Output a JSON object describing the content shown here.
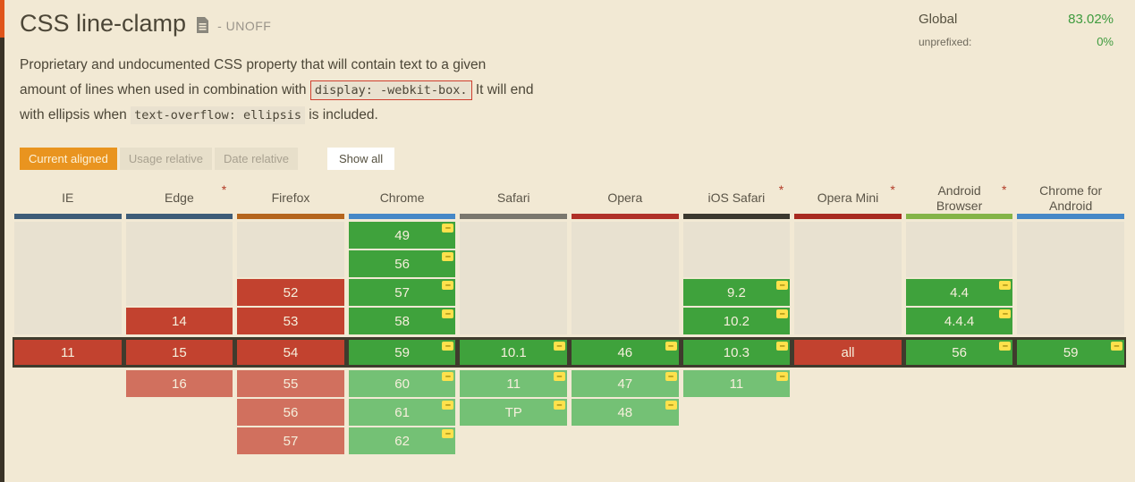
{
  "colors": {
    "accent_stripe_top": "#e0551b",
    "accent_stripe": "#3a3327",
    "active_tab": "#e9941f",
    "usage_value_green": "#3e9b3e"
  },
  "header": {
    "title": "CSS line-clamp",
    "status": "- UNOFF",
    "global_label": "Global",
    "global_value": "83.02%",
    "unprefixed_label": "unprefixed:",
    "unprefixed_value": "0%"
  },
  "description": {
    "part1": "Proprietary and undocumented CSS property that will contain text to a given amount of lines when used in combination with ",
    "code1": "display: -webkit-box.",
    "part2": " It will end with ellipsis when ",
    "code2": "text-overflow: ellipsis",
    "part3": " is included."
  },
  "tabs": [
    {
      "label": "Current aligned",
      "active": true
    },
    {
      "label": "Usage relative",
      "active": false
    },
    {
      "label": "Date relative",
      "active": false
    }
  ],
  "show_all_label": "Show all",
  "table": {
    "badge_glyph": "–",
    "colors": {
      "y": "#3fa23c",
      "n": "#c2422f",
      "y-soon": "#74c175",
      "n-soon": "#d1705e",
      "empty": "#e8e1d0",
      "current_row": "#3f3b2d",
      "badge": "#ffe14c"
    },
    "columns": [
      {
        "name": "IE",
        "star": false,
        "bar": "#3e5c78",
        "past": [
          {
            "empty": 4
          }
        ],
        "current": {
          "v": "11",
          "s": "n"
        },
        "future": []
      },
      {
        "name": "Edge",
        "star": true,
        "bar": "#3e5c78",
        "past": [
          {
            "empty": 3
          },
          {
            "v": "14",
            "s": "n"
          }
        ],
        "current": {
          "v": "15",
          "s": "n"
        },
        "future": [
          {
            "v": "16",
            "s": "n-soon"
          }
        ]
      },
      {
        "name": "Firefox",
        "star": false,
        "bar": "#b5651d",
        "past": [
          {
            "empty": 2
          },
          {
            "v": "52",
            "s": "n"
          },
          {
            "v": "53",
            "s": "n"
          }
        ],
        "current": {
          "v": "54",
          "s": "n"
        },
        "future": [
          {
            "v": "55",
            "s": "n-soon"
          },
          {
            "v": "56",
            "s": "n-soon"
          },
          {
            "v": "57",
            "s": "n-soon"
          }
        ]
      },
      {
        "name": "Chrome",
        "star": false,
        "bar": "#4688c7",
        "past": [
          {
            "v": "49",
            "s": "y",
            "b": true
          },
          {
            "v": "56",
            "s": "y",
            "b": true
          },
          {
            "v": "57",
            "s": "y",
            "b": true
          },
          {
            "v": "58",
            "s": "y",
            "b": true
          }
        ],
        "current": {
          "v": "59",
          "s": "y",
          "b": true
        },
        "future": [
          {
            "v": "60",
            "s": "y-soon",
            "b": true
          },
          {
            "v": "61",
            "s": "y-soon",
            "b": true
          },
          {
            "v": "62",
            "s": "y-soon",
            "b": true
          }
        ]
      },
      {
        "name": "Safari",
        "star": false,
        "bar": "#7a776e",
        "past": [
          {
            "empty": 4
          }
        ],
        "current": {
          "v": "10.1",
          "s": "y",
          "b": true
        },
        "future": [
          {
            "v": "11",
            "s": "y-soon",
            "b": true
          },
          {
            "v": "TP",
            "s": "y-soon",
            "b": true
          }
        ]
      },
      {
        "name": "Opera",
        "star": false,
        "bar": "#b03028",
        "past": [
          {
            "empty": 4
          }
        ],
        "current": {
          "v": "46",
          "s": "y",
          "b": true
        },
        "future": [
          {
            "v": "47",
            "s": "y-soon",
            "b": true
          },
          {
            "v": "48",
            "s": "y-soon",
            "b": true
          }
        ]
      },
      {
        "name": "iOS Safari",
        "star": true,
        "bar": "#3b382f",
        "past": [
          {
            "empty": 2
          },
          {
            "v": "9.2",
            "s": "y",
            "b": true
          },
          {
            "v": "10.2",
            "s": "y",
            "b": true
          }
        ],
        "current": {
          "v": "10.3",
          "s": "y",
          "b": true
        },
        "future": [
          {
            "v": "11",
            "s": "y-soon",
            "b": true
          }
        ]
      },
      {
        "name": "Opera Mini",
        "star": true,
        "bar": "#a82a20",
        "past": [
          {
            "empty": 4
          }
        ],
        "current": {
          "v": "all",
          "s": "n"
        },
        "future": []
      },
      {
        "name": "Android Browser",
        "star": true,
        "bar": "#84b447",
        "past": [
          {
            "empty": 2
          },
          {
            "v": "4.4",
            "s": "y",
            "b": true
          },
          {
            "v": "4.4.4",
            "s": "y",
            "b": true
          }
        ],
        "current": {
          "v": "56",
          "s": "y",
          "b": true
        },
        "future": []
      },
      {
        "name": "Chrome for Android",
        "star": false,
        "bar": "#4688c7",
        "past": [
          {
            "empty": 4
          }
        ],
        "current": {
          "v": "59",
          "s": "y",
          "b": true
        },
        "future": []
      }
    ]
  }
}
